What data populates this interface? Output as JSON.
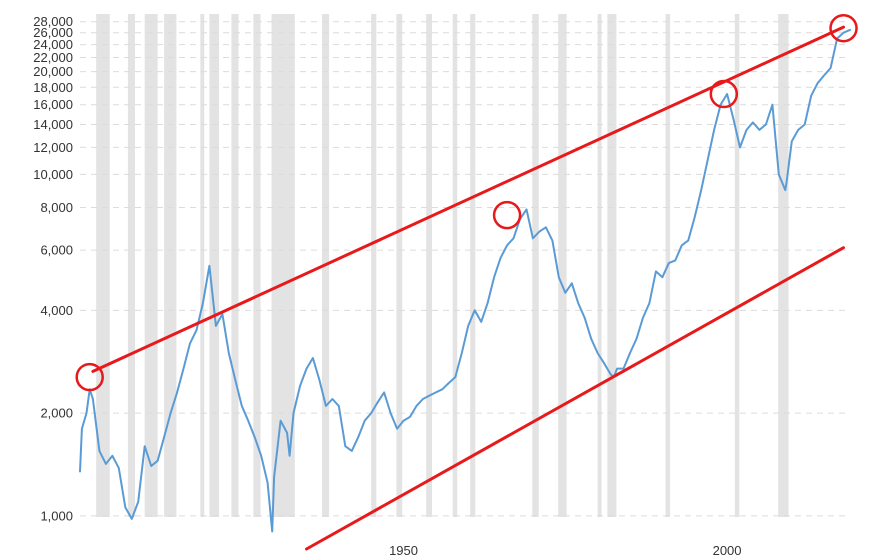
{
  "chart_data": {
    "type": "line",
    "title": "",
    "xlabel": "",
    "ylabel": "",
    "y_scale": "log",
    "xlim": [
      1900,
      2019
    ],
    "ylim": [
      850,
      29500
    ],
    "grid": {
      "horizontal": true,
      "vertical": false,
      "style": "dashed"
    },
    "legend": "none",
    "x_ticks": [
      {
        "value": 1950,
        "label": "1950"
      },
      {
        "value": 2000,
        "label": "2000"
      }
    ],
    "y_ticks": [
      {
        "value": 1000,
        "label": "1,000"
      },
      {
        "value": 2000,
        "label": "2,000"
      },
      {
        "value": 4000,
        "label": "4,000"
      },
      {
        "value": 6000,
        "label": "6,000"
      },
      {
        "value": 8000,
        "label": "8,000"
      },
      {
        "value": 10000,
        "label": "10,000"
      },
      {
        "value": 12000,
        "label": "12,000"
      },
      {
        "value": 14000,
        "label": "14,000"
      },
      {
        "value": 16000,
        "label": "16,000"
      },
      {
        "value": 18000,
        "label": "18,000"
      },
      {
        "value": 20000,
        "label": "20,000"
      },
      {
        "value": 22000,
        "label": "22,000"
      },
      {
        "value": 24000,
        "label": "24,000"
      },
      {
        "value": 26000,
        "label": "26,000"
      },
      {
        "value": 28000,
        "label": "28,000"
      }
    ],
    "recessions": [
      [
        1902.5,
        1904.6
      ],
      [
        1907.4,
        1908.5
      ],
      [
        1910.0,
        1912.0
      ],
      [
        1913.0,
        1914.9
      ],
      [
        1918.6,
        1919.2
      ],
      [
        1920.0,
        1921.5
      ],
      [
        1923.4,
        1924.5
      ],
      [
        1926.8,
        1927.9
      ],
      [
        1929.6,
        1933.2
      ],
      [
        1937.4,
        1938.5
      ],
      [
        1945.0,
        1945.8
      ],
      [
        1948.9,
        1949.8
      ],
      [
        1953.5,
        1954.4
      ],
      [
        1957.6,
        1958.3
      ],
      [
        1960.3,
        1961.1
      ],
      [
        1969.9,
        1970.9
      ],
      [
        1973.9,
        1975.2
      ],
      [
        1980.0,
        1980.6
      ],
      [
        1981.5,
        1982.9
      ],
      [
        1990.5,
        1991.2
      ],
      [
        2001.2,
        2001.9
      ],
      [
        2007.9,
        2009.5
      ]
    ],
    "series": [
      {
        "color": "#5b9bd5",
        "x": [
          1900,
          1900.3,
          1901.0,
          1901.5,
          1902,
          1903,
          1904,
          1905,
          1906,
          1907,
          1908,
          1909,
          1910,
          1911,
          1912,
          1913,
          1914,
          1915,
          1916,
          1917,
          1918,
          1919,
          1920,
          1921,
          1922,
          1923,
          1924,
          1925,
          1926,
          1927,
          1928,
          1929,
          1929.7,
          1930,
          1931,
          1932,
          1932.4,
          1933,
          1934,
          1935,
          1936,
          1937,
          1938,
          1939,
          1940,
          1941,
          1942,
          1943,
          1944,
          1945,
          1946,
          1947,
          1948,
          1949,
          1950,
          1951,
          1952,
          1953,
          1954,
          1955,
          1956,
          1957,
          1958,
          1959,
          1960,
          1961,
          1962,
          1963,
          1964,
          1965,
          1966,
          1967,
          1968,
          1969,
          1970,
          1971,
          1972,
          1973,
          1974,
          1975,
          1976,
          1977,
          1978,
          1979,
          1980,
          1981,
          1982,
          1982.5,
          1983,
          1984,
          1985,
          1986,
          1987,
          1988,
          1989,
          1990,
          1991,
          1992,
          1993,
          1994,
          1995,
          1996,
          1997,
          1998,
          1999,
          2000,
          2001,
          2002,
          2003,
          2004,
          2005,
          2006,
          2007,
          2008,
          2009,
          2009.2,
          2010,
          2011,
          2012,
          2013,
          2014,
          2015,
          2016,
          2017,
          2018,
          2019
        ],
        "y": [
          1350,
          1800,
          2000,
          2350,
          2200,
          1550,
          1420,
          1500,
          1380,
          1060,
          980,
          1100,
          1600,
          1400,
          1450,
          1700,
          2000,
          2300,
          2700,
          3200,
          3500,
          4200,
          5400,
          3600,
          3900,
          3000,
          2500,
          2100,
          1900,
          1700,
          1500,
          1250,
          900,
          1300,
          1900,
          1750,
          1500,
          2000,
          2400,
          2700,
          2900,
          2500,
          2100,
          2200,
          2100,
          1600,
          1550,
          1700,
          1900,
          2000,
          2150,
          2300,
          2000,
          1800,
          1900,
          1950,
          2100,
          2200,
          2250,
          2300,
          2350,
          2450,
          2550,
          3000,
          3600,
          4000,
          3700,
          4200,
          5000,
          5700,
          6200,
          6500,
          7400,
          7900,
          6500,
          6800,
          7000,
          6400,
          5000,
          4500,
          4800,
          4200,
          3800,
          3300,
          3000,
          2800,
          2600,
          2550,
          2700,
          2700,
          3000,
          3300,
          3800,
          4200,
          5200,
          5000,
          5500,
          5600,
          6200,
          6400,
          7500,
          9000,
          11000,
          13500,
          16000,
          17200,
          14500,
          12000,
          13500,
          14200,
          13500,
          14000,
          16000,
          10000,
          9000,
          9500,
          12500,
          13500,
          14000,
          17000,
          18500,
          19500,
          20500,
          25000,
          26000,
          26500
        ],
        "line_width": 2
      },
      {
        "color": "#e8191b",
        "x": [
          1902,
          2018
        ],
        "y": [
          2650,
          27000
        ],
        "line_width": 3
      },
      {
        "color": "#e8191b",
        "x": [
          1935,
          2018
        ],
        "y": [
          800,
          6100
        ],
        "line_width": 3
      }
    ],
    "circles": [
      {
        "x": 1901.5,
        "y": 2550
      },
      {
        "x": 1966,
        "y": 7600
      },
      {
        "x": 1999.5,
        "y": 17200
      },
      {
        "x": 2018,
        "y": 26800
      }
    ]
  }
}
